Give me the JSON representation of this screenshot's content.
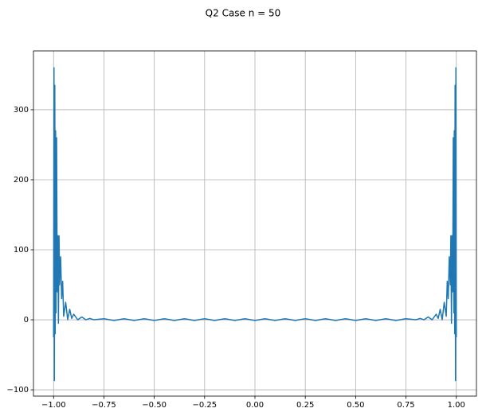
{
  "chart_data": {
    "type": "line",
    "title": "Q2 Case n = 50",
    "x": [
      -1.0,
      -0.998,
      -0.996,
      -0.994,
      -0.992,
      -0.99,
      -0.988,
      -0.985,
      -0.982,
      -0.979,
      -0.976,
      -0.973,
      -0.97,
      -0.965,
      -0.96,
      -0.955,
      -0.95,
      -0.94,
      -0.93,
      -0.92,
      -0.91,
      -0.9,
      -0.88,
      -0.86,
      -0.84,
      -0.82,
      -0.8,
      -0.75,
      -0.7,
      -0.65,
      -0.6,
      -0.55,
      -0.5,
      -0.45,
      -0.4,
      -0.35,
      -0.3,
      -0.25,
      -0.2,
      -0.15,
      -0.1,
      -0.05,
      0,
      0.05,
      0.1,
      0.15,
      0.2,
      0.25,
      0.3,
      0.35,
      0.4,
      0.45,
      0.5,
      0.55,
      0.6,
      0.65,
      0.7,
      0.75,
      0.8,
      0.82,
      0.84,
      0.86,
      0.88,
      0.9,
      0.91,
      0.92,
      0.93,
      0.94,
      0.95,
      0.955,
      0.96,
      0.965,
      0.97,
      0.973,
      0.976,
      0.979,
      0.982,
      0.985,
      0.988,
      0.99,
      0.992,
      0.994,
      0.996,
      0.998,
      1.0
    ],
    "series": [
      {
        "color": "#1f77b4",
        "values": [
          -25,
          360,
          -87,
          335,
          -20,
          270,
          10,
          260,
          40,
          120,
          -5,
          120,
          50,
          90,
          30,
          55,
          5,
          25,
          0,
          15,
          2,
          8,
          0,
          4,
          0,
          2,
          0,
          1.5,
          -1,
          1.5,
          -1,
          1.5,
          -1,
          1.5,
          -1,
          1.5,
          -1,
          1.5,
          -1,
          1.5,
          -1,
          1.5,
          -1,
          1.5,
          -1,
          1.5,
          -1,
          1.5,
          -1,
          1.5,
          -1,
          1.5,
          -1,
          1.5,
          -1,
          1.5,
          -1,
          1.5,
          0,
          2,
          0,
          4,
          0,
          8,
          2,
          15,
          0,
          25,
          5,
          55,
          30,
          90,
          50,
          120,
          -5,
          120,
          40,
          260,
          10,
          270,
          -20,
          335,
          -87,
          360,
          -25
        ]
      }
    ],
    "xlim": [
      -1.1,
      1.1
    ],
    "ylim": [
      -109,
      384
    ],
    "xticks": [
      {
        "value": -1,
        "label": "−1.00"
      },
      {
        "value": -0.75,
        "label": "−0.75"
      },
      {
        "value": -0.5,
        "label": "−0.50"
      },
      {
        "value": -0.25,
        "label": "−0.25"
      },
      {
        "value": 0,
        "label": "0.00"
      },
      {
        "value": 0.25,
        "label": "0.25"
      },
      {
        "value": 0.5,
        "label": "0.50"
      },
      {
        "value": 0.75,
        "label": "0.75"
      },
      {
        "value": 1,
        "label": "1.00"
      }
    ],
    "yticks": [
      {
        "value": -100,
        "label": "−100"
      },
      0,
      100,
      200,
      300
    ],
    "grid": true
  }
}
